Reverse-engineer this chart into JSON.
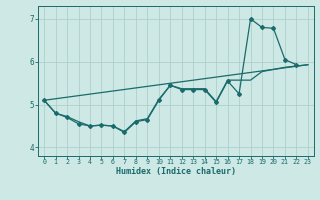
{
  "xlabel": "Humidex (Indice chaleur)",
  "bg_color": "#cde8e5",
  "line_color": "#1a6b6b",
  "grid_color": "#aed0cd",
  "xlim": [
    -0.5,
    23.5
  ],
  "ylim": [
    3.8,
    7.3
  ],
  "xticks": [
    0,
    1,
    2,
    3,
    4,
    5,
    6,
    7,
    8,
    9,
    10,
    11,
    12,
    13,
    14,
    15,
    16,
    17,
    18,
    19,
    20,
    21,
    22,
    23
  ],
  "yticks": [
    4,
    5,
    6,
    7
  ],
  "line1_x": [
    0,
    1,
    2,
    3,
    4,
    5,
    6,
    7,
    8,
    9,
    10,
    11,
    12,
    13,
    14,
    15,
    16,
    17,
    18,
    19,
    20,
    21,
    22
  ],
  "line1_y": [
    5.1,
    4.8,
    4.7,
    4.55,
    4.5,
    4.52,
    4.5,
    4.35,
    4.6,
    4.65,
    5.1,
    5.45,
    5.35,
    5.35,
    5.35,
    5.05,
    5.55,
    5.25,
    7.0,
    6.8,
    6.78,
    6.05,
    5.93
  ],
  "line2_x": [
    0,
    1,
    2,
    3,
    4,
    5,
    6,
    7,
    8,
    9,
    10,
    11,
    12,
    13,
    14,
    15,
    16,
    17,
    18,
    19,
    20,
    21,
    22,
    23
  ],
  "line2_y": [
    5.1,
    4.8,
    4.72,
    4.6,
    4.5,
    4.52,
    4.5,
    4.37,
    4.62,
    4.67,
    5.12,
    5.45,
    5.37,
    5.37,
    5.37,
    5.07,
    5.57,
    5.57,
    5.57,
    5.77,
    5.82,
    5.87,
    5.9,
    5.93
  ],
  "line3_x": [
    0,
    23
  ],
  "line3_y": [
    5.1,
    5.93
  ]
}
